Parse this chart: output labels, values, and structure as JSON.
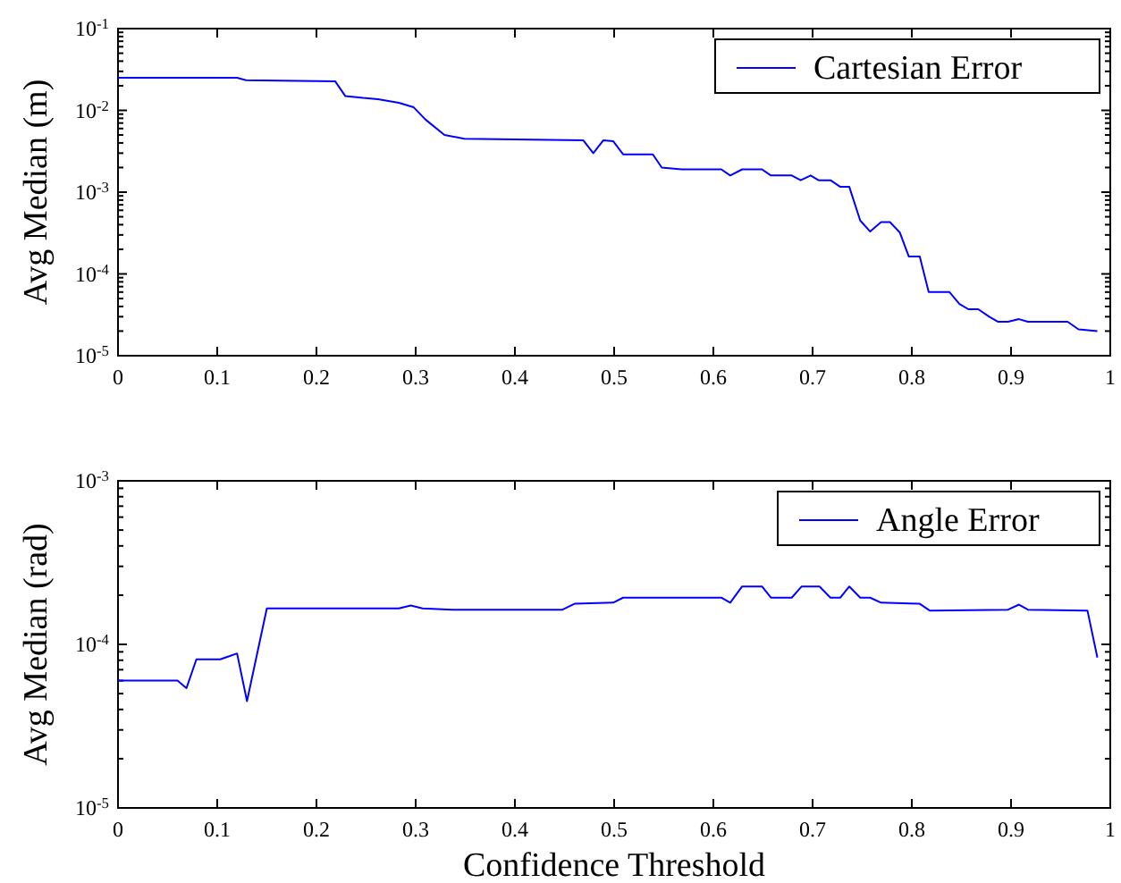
{
  "chart_data": [
    {
      "type": "line",
      "ylabel": "Avg Median (m)",
      "log": "y",
      "legend": "top right",
      "xlim": [
        0,
        1
      ],
      "xticks": [
        0,
        0.1,
        0.2,
        0.3,
        0.4,
        0.5,
        0.6,
        0.7,
        0.8,
        0.9,
        1
      ],
      "ylim": [
        1e-05,
        0.1
      ],
      "yticks": [
        {
          "value": 1e-05,
          "label": "10$^{-5}$"
        },
        {
          "value": 0.0001,
          "label": "10$^{-4}$"
        },
        {
          "value": 0.001,
          "label": "10$^{-3}$"
        },
        {
          "value": 0.01,
          "label": "10$^{-2}$"
        },
        {
          "value": 0.1,
          "label": "10$^{-1}$"
        }
      ],
      "series": [
        {
          "name": "Cartesian Error",
          "color": "#0000ff",
          "x": [
            0,
            0.12,
            0.129,
            0.219,
            0.229,
            0.247,
            0.262,
            0.283,
            0.298,
            0.31,
            0.329,
            0.349,
            0.469,
            0.479,
            0.489,
            0.499,
            0.509,
            0.539,
            0.548,
            0.568,
            0.608,
            0.617,
            0.629,
            0.649,
            0.658,
            0.679,
            0.688,
            0.698,
            0.706,
            0.718,
            0.728,
            0.737,
            0.748,
            0.758,
            0.769,
            0.778,
            0.788,
            0.797,
            0.808,
            0.817,
            0.838,
            0.848,
            0.857,
            0.867,
            0.878,
            0.887,
            0.897,
            0.908,
            0.917,
            0.957,
            0.968,
            0.987
          ],
          "values": [
            0.025,
            0.025,
            0.0234,
            0.0226,
            0.015,
            0.0142,
            0.0137,
            0.0124,
            0.0109,
            0.0077,
            0.005,
            0.0045,
            0.0043,
            0.003,
            0.0043,
            0.0042,
            0.0029,
            0.0029,
            0.002,
            0.0019,
            0.0019,
            0.0016,
            0.0019,
            0.0019,
            0.0016,
            0.0016,
            0.0014,
            0.0016,
            0.0014,
            0.0014,
            0.00116,
            0.00116,
            0.00045,
            0.00033,
            0.00043,
            0.00043,
            0.00032,
            0.000163,
            0.000163,
            6e-05,
            6e-05,
            4.3e-05,
            3.7e-05,
            3.7e-05,
            3e-05,
            2.6e-05,
            2.6e-05,
            2.8e-05,
            2.6e-05,
            2.6e-05,
            2.1e-05,
            2e-05
          ]
        }
      ]
    },
    {
      "type": "line",
      "xlabel": "Confidence Threshold",
      "ylabel": "Avg Median (rad)",
      "log": "y",
      "legend": "top right",
      "xlim": [
        0,
        1
      ],
      "xticks": [
        0,
        0.1,
        0.2,
        0.3,
        0.4,
        0.5,
        0.6,
        0.7,
        0.8,
        0.9,
        1
      ],
      "ylim": [
        1e-05,
        0.001
      ],
      "yticks": [
        {
          "value": 1e-05,
          "label": "10$^{-5}$"
        },
        {
          "value": 0.0001,
          "label": "10$^{-4}$"
        },
        {
          "value": 0.001,
          "label": "10$^{-3}$"
        }
      ],
      "series": [
        {
          "name": "Angle Error",
          "color": "#0000ff",
          "x": [
            0,
            0.06,
            0.069,
            0.079,
            0.103,
            0.12,
            0.13,
            0.15,
            0.283,
            0.295,
            0.307,
            0.337,
            0.448,
            0.46,
            0.499,
            0.509,
            0.608,
            0.617,
            0.629,
            0.649,
            0.658,
            0.679,
            0.689,
            0.707,
            0.718,
            0.728,
            0.737,
            0.748,
            0.758,
            0.769,
            0.808,
            0.818,
            0.897,
            0.908,
            0.917,
            0.977,
            0.987
          ],
          "values": [
            6e-05,
            6e-05,
            5.4e-05,
            8.1e-05,
            8.1e-05,
            8.8e-05,
            4.5e-05,
            0.000166,
            0.000166,
            0.000173,
            0.000166,
            0.000163,
            0.000163,
            0.000177,
            0.00018,
            0.000193,
            0.000193,
            0.00018,
            0.000226,
            0.000226,
            0.000193,
            0.000193,
            0.000226,
            0.000226,
            0.000193,
            0.000193,
            0.000226,
            0.000193,
            0.000193,
            0.00018,
            0.000177,
            0.000161,
            0.000163,
            0.000175,
            0.000163,
            0.000161,
            8.3e-05
          ]
        }
      ]
    }
  ]
}
